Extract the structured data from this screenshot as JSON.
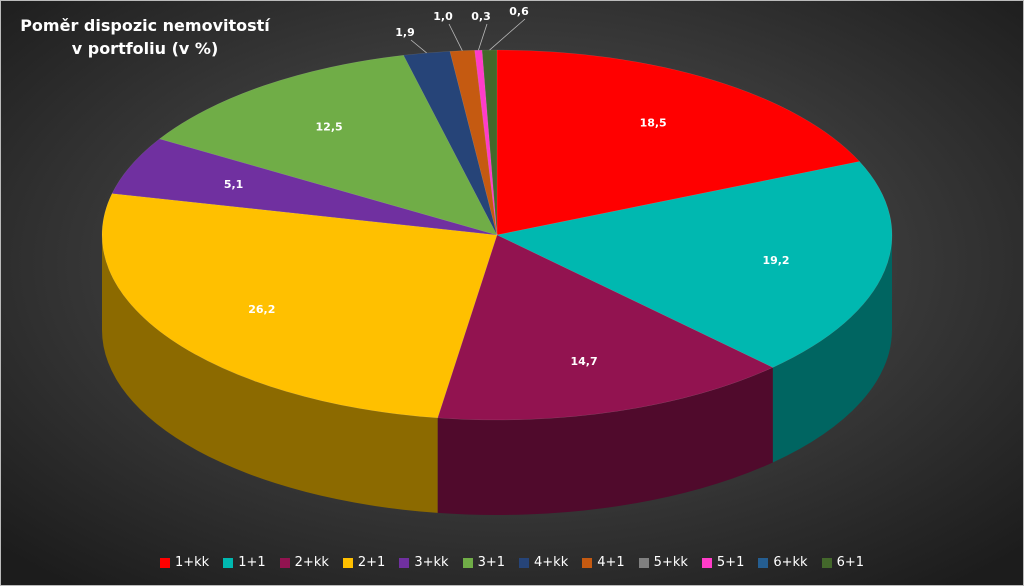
{
  "chart_data": {
    "type": "pie3d",
    "title": "Poměr dispozic nemovitostí v portfoliu (v %)",
    "categories": [
      "1+kk",
      "1+1",
      "2+kk",
      "2+1",
      "3+kk",
      "3+1",
      "4+kk",
      "4+1",
      "5+kk",
      "5+1",
      "6+kk",
      "6+1"
    ],
    "values": [
      18.5,
      19.2,
      14.7,
      26.2,
      5.1,
      12.5,
      1.9,
      1.0,
      0,
      0.3,
      0,
      0.6
    ],
    "value_labels": [
      "18,5",
      "19,2",
      "14,7",
      "26,2",
      "5,1",
      "12,5",
      "1,9",
      "1,0",
      null,
      "0,3",
      null,
      "0,6"
    ],
    "colors": [
      "#ff0000",
      "#00b8b0",
      "#921350",
      "#ffc000",
      "#7030a0",
      "#70ad47",
      "#264478",
      "#c55a11",
      "#808080",
      "#ff3cc8",
      "#255e91",
      "#43682b"
    ],
    "legend": "bottom"
  }
}
